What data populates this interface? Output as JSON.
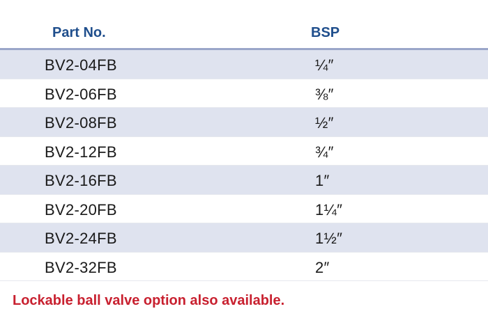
{
  "table": {
    "headers": {
      "part_no": "Part No.",
      "bsp": "BSP"
    },
    "rows": [
      {
        "part_no": "BV2-04FB",
        "bsp": "¼″"
      },
      {
        "part_no": "BV2-06FB",
        "bsp": "⅜″"
      },
      {
        "part_no": "BV2-08FB",
        "bsp": "½″"
      },
      {
        "part_no": "BV2-12FB",
        "bsp": "¾″"
      },
      {
        "part_no": "BV2-16FB",
        "bsp": "1″"
      },
      {
        "part_no": "BV2-20FB",
        "bsp": "1¼″"
      },
      {
        "part_no": "BV2-24FB",
        "bsp": "1½″"
      },
      {
        "part_no": "BV2-32FB",
        "bsp": "2″"
      }
    ]
  },
  "note": "Lockable ball valve option also available.",
  "colors": {
    "header_text": "#1f4e8c",
    "row_shade": "#dfe3ef",
    "note_text": "#c8202f"
  }
}
